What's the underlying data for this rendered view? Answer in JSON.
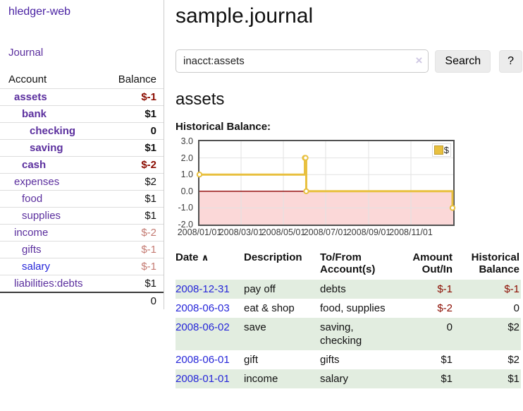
{
  "app": {
    "title": "hledger-web",
    "nav_journal": "Journal"
  },
  "sidebar": {
    "headers": {
      "account": "Account",
      "balance": "Balance"
    },
    "accounts": [
      {
        "name": "assets",
        "balance": "$-1",
        "indent": 0,
        "bold": true,
        "negative": "strong"
      },
      {
        "name": "bank",
        "balance": "$1",
        "indent": 1,
        "bold": true,
        "negative": "none"
      },
      {
        "name": "checking",
        "balance": "0",
        "indent": 2,
        "bold": true,
        "negative": "none"
      },
      {
        "name": "saving",
        "balance": "$1",
        "indent": 2,
        "bold": true,
        "negative": "none"
      },
      {
        "name": "cash",
        "balance": "$-2",
        "indent": 1,
        "bold": true,
        "negative": "strong"
      },
      {
        "name": "expenses",
        "balance": "$2",
        "indent": 0,
        "bold": false,
        "negative": "none"
      },
      {
        "name": "food",
        "balance": "$1",
        "indent": 1,
        "bold": false,
        "negative": "none"
      },
      {
        "name": "supplies",
        "balance": "$1",
        "indent": 1,
        "bold": false,
        "negative": "none"
      },
      {
        "name": "income",
        "balance": "$-2",
        "indent": 0,
        "bold": false,
        "negative": "soft"
      },
      {
        "name": "gifts",
        "balance": "$-1",
        "indent": 1,
        "bold": false,
        "negative": "soft"
      },
      {
        "name": "salary",
        "balance": "$-1",
        "indent": 1,
        "bold": false,
        "negative": "soft",
        "link_style": "blue"
      },
      {
        "name": "liabilities:debts",
        "balance": "$1",
        "indent": 0,
        "bold": false,
        "negative": "none"
      }
    ],
    "total": "0"
  },
  "main": {
    "page_title": "sample.journal",
    "search": {
      "value": "inacct:assets",
      "clear_icon": "×",
      "button": "Search",
      "help_button": "?"
    },
    "account_heading": "assets",
    "chart_heading": "Historical Balance:"
  },
  "chart_data": {
    "type": "line",
    "title": "Historical Balance",
    "xlabel": "",
    "ylabel": "",
    "ylim": [
      -2,
      3
    ],
    "yticks": [
      "3.0",
      "2.0",
      "1.0",
      "0.0",
      "-1.0",
      "-2.0"
    ],
    "xticks": [
      "2008/01/01",
      "2008/03/01",
      "2008/05/01",
      "2008/07/01",
      "2008/09/01",
      "2008/11/01"
    ],
    "x_range": [
      "2008-01-01",
      "2008-12-31"
    ],
    "grid": true,
    "legend": {
      "label": "$",
      "position": "top-right"
    },
    "series": [
      {
        "name": "$",
        "step": true,
        "color": "#e8c03f",
        "points": [
          [
            "2008-01-01",
            1
          ],
          [
            "2008-06-01",
            2
          ],
          [
            "2008-06-02",
            2
          ],
          [
            "2008-06-03",
            0
          ],
          [
            "2008-12-31",
            -1
          ]
        ]
      }
    ],
    "negative_region_color": "#fbd8d8",
    "zero_line_color": "#8b0000",
    "gridline_color": "#e2e2e2"
  },
  "register": {
    "headers": {
      "date": "Date",
      "sort_icon": "∧",
      "description": "Description",
      "accounts": "To/From Account(s)",
      "amount": "Amount Out/In",
      "balance": "Historical Balance"
    },
    "rows": [
      {
        "date": "2008-12-31",
        "description": "pay off",
        "accounts": "debts",
        "amount": "$-1",
        "amount_negative": true,
        "balance": "$-1",
        "balance_negative": true
      },
      {
        "date": "2008-06-03",
        "description": "eat & shop",
        "accounts": "food, supplies",
        "amount": "$-2",
        "amount_negative": true,
        "balance": "0",
        "balance_negative": false
      },
      {
        "date": "2008-06-02",
        "description": "save",
        "accounts": "saving, checking",
        "amount": "0",
        "amount_negative": false,
        "balance": "$2",
        "balance_negative": false
      },
      {
        "date": "2008-06-01",
        "description": "gift",
        "accounts": "gifts",
        "amount": "$1",
        "amount_negative": false,
        "balance": "$2",
        "balance_negative": false
      },
      {
        "date": "2008-01-01",
        "description": "income",
        "accounts": "salary",
        "amount": "$1",
        "amount_negative": false,
        "balance": "$1",
        "balance_negative": false
      }
    ]
  }
}
